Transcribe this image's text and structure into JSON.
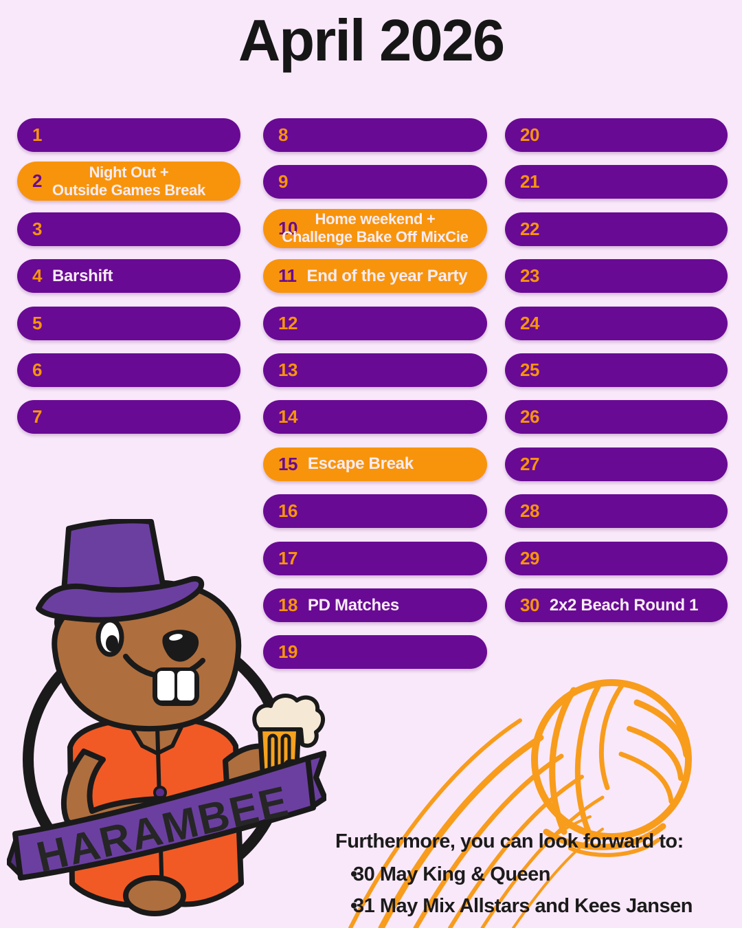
{
  "title": "April 2026",
  "calendar": {
    "columns": [
      {
        "days": [
          {
            "num": "1"
          },
          {
            "num": "2",
            "event_lines": [
              "Night Out +",
              "Outside Games Break"
            ],
            "highlight": true
          },
          {
            "num": "3"
          },
          {
            "num": "4",
            "event": "Barshift"
          },
          {
            "num": "5"
          },
          {
            "num": "6"
          },
          {
            "num": "7"
          }
        ]
      },
      {
        "days": [
          {
            "num": "8"
          },
          {
            "num": "9"
          },
          {
            "num": "10",
            "event_lines": [
              "Home weekend +",
              "Challenge Bake Off MixCie"
            ],
            "highlight": true
          },
          {
            "num": "11",
            "event": "End of the year Party",
            "highlight": true
          },
          {
            "num": "12"
          },
          {
            "num": "13"
          },
          {
            "num": "14"
          },
          {
            "num": "15",
            "event": "Escape Break",
            "highlight": true
          },
          {
            "num": "16"
          },
          {
            "num": "17"
          },
          {
            "num": "18",
            "event": "PD Matches"
          },
          {
            "num": "19"
          }
        ]
      },
      {
        "days": [
          {
            "num": "20"
          },
          {
            "num": "21"
          },
          {
            "num": "22"
          },
          {
            "num": "23"
          },
          {
            "num": "24"
          },
          {
            "num": "25"
          },
          {
            "num": "26"
          },
          {
            "num": "27"
          },
          {
            "num": "28"
          },
          {
            "num": "29"
          },
          {
            "num": "30",
            "event": "2x2 Beach Round 1"
          }
        ]
      }
    ]
  },
  "footer": {
    "heading": "Furthermore, you can look forward to:",
    "bullets": [
      "30 May King & Queen",
      "31 May Mix Allstars and Kees Jansen"
    ]
  },
  "mascot": {
    "banner_text": "HARAMBEE"
  },
  "icons": [
    "harambee-beaver-mascot",
    "volleyball-icon"
  ],
  "colors": {
    "background": "#F9E8FA",
    "pill_purple": "#690A94",
    "pill_orange": "#F8940B",
    "label_white": "#F8ECF6",
    "title_black": "#161616",
    "artwork_orange": "#F89C1C",
    "banner_purple": "#6B3FA0",
    "vest_orange": "#F15A25",
    "beaver_brown": "#AF6E3E"
  }
}
